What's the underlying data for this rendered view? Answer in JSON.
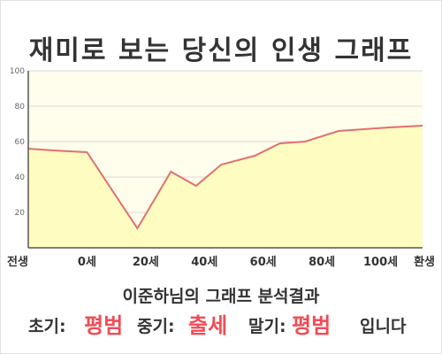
{
  "title": "재미로 보는 당신의 인생 그래프",
  "chart_data": {
    "type": "area",
    "x": [
      0,
      3,
      7,
      13,
      17,
      20,
      23,
      27,
      30,
      33,
      37,
      40,
      43,
      47
    ],
    "y": [
      56,
      55,
      54,
      11,
      43,
      35,
      47,
      52,
      59,
      60,
      66,
      67,
      68,
      69
    ],
    "xlim": [
      0,
      47
    ],
    "ylim": [
      0,
      100
    ],
    "x_ticks": [
      {
        "x": 0,
        "label": "전생"
      },
      {
        "x": 7,
        "label": "0세"
      },
      {
        "x": 14,
        "label": "20세"
      },
      {
        "x": 21,
        "label": "40세"
      },
      {
        "x": 28,
        "label": "60세"
      },
      {
        "x": 35,
        "label": "80세"
      },
      {
        "x": 42,
        "label": "100세"
      },
      {
        "x": 47,
        "label": "환생"
      }
    ],
    "y_ticks": [
      20,
      40,
      60,
      80,
      100
    ],
    "grid": true,
    "colors": {
      "plot_bg": "#fffdeb",
      "area_fill": "#fefcc0",
      "line": "#e07070",
      "grid": "#d8d8d8",
      "axis": "#555555"
    }
  },
  "subtitle": "이준하님의 그래프 분석결과",
  "result": {
    "early_label": "초기:",
    "early_value": "평범",
    "middle_label": "중기:",
    "middle_value": "출세",
    "late_label": "말기:",
    "late_value": "평범",
    "suffix": "입니다"
  }
}
